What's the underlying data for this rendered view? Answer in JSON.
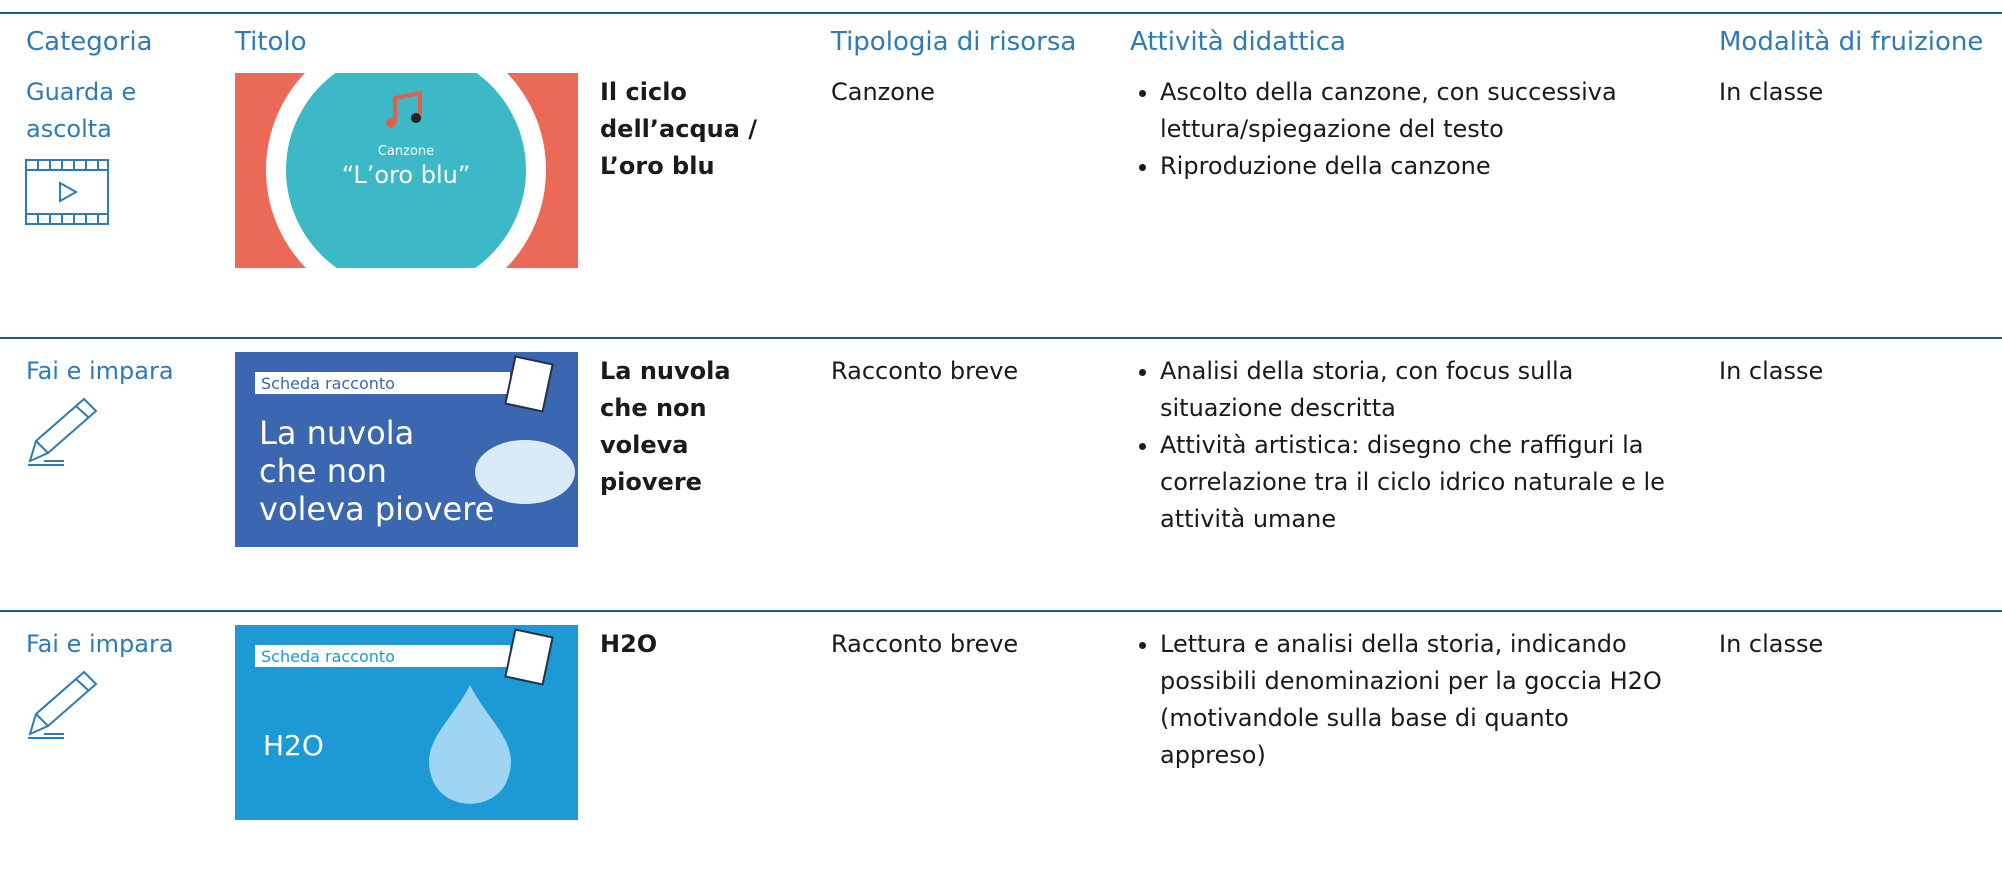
{
  "header": {
    "columns": [
      "Categoria",
      "Titolo",
      "Tipologia di risorsa",
      "Attività didattica",
      "Modalità di fruizione"
    ]
  },
  "rows": [
    {
      "category": "Guarda e ascolta",
      "icon": "video",
      "thumbnail": {
        "label": "Canzone",
        "lines": [
          "“L’oro blu”"
        ]
      },
      "title": "Il ciclo dell’acqua / L’oro blu",
      "type": "Canzone",
      "activities": [
        "Ascolto della canzone, con successiva lettura/spiegazione del testo",
        "Riproduzione della canzone"
      ],
      "mode": "In classe"
    },
    {
      "category": "Fai e impara",
      "icon": "pencil",
      "thumbnail": {
        "label": "Scheda racconto",
        "lines": [
          "La nuvola",
          "che non",
          "voleva piovere"
        ]
      },
      "title": "La nuvola che non voleva piovere",
      "type": "Racconto breve",
      "activities": [
        "Analisi della storia, con focus sulla situazione descritta",
        "Attività artistica: disegno che raffiguri la correlazione tra il ciclo idrico naturale e le attività umane"
      ],
      "mode": "In classe"
    },
    {
      "category": "Fai e impara",
      "icon": "pencil",
      "thumbnail": {
        "label": "Scheda racconto",
        "lines": [
          "H2O"
        ]
      },
      "title": "H2O",
      "type": "Racconto breve",
      "activities": [
        "Lettura e analisi della storia, indicando possibili denominazioni per la goccia H2O (motivandole sulla base di quanto appreso)"
      ],
      "mode": "In classe"
    }
  ]
}
